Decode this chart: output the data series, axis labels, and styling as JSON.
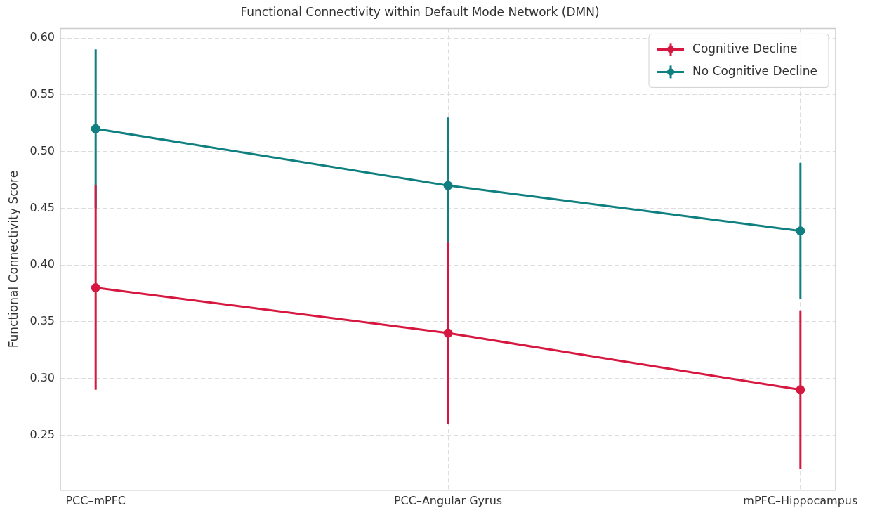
{
  "chart_data": {
    "type": "line",
    "title": "Functional Connectivity within Default Mode Network (DMN)",
    "ylabel": "Functional Connectivity Score",
    "categories": [
      "PCC–mPFC",
      "PCC–Angular Gyrus",
      "mPFC–Hippocampus"
    ],
    "series": [
      {
        "name": "Cognitive Decline",
        "color": "#d6173f",
        "values": [
          0.38,
          0.34,
          0.29
        ],
        "errors": [
          0.09,
          0.08,
          0.07
        ]
      },
      {
        "name": "No Cognitive Decline",
        "color": "#0f7f7f",
        "values": [
          0.52,
          0.47,
          0.43
        ],
        "errors": [
          0.07,
          0.06,
          0.06
        ]
      }
    ],
    "ylim": [
      0.2015,
      0.6085
    ],
    "yticks": [
      {
        "value": 0.25,
        "label": "0.25"
      },
      {
        "value": 0.3,
        "label": "0.30"
      },
      {
        "value": 0.35,
        "label": "0.35"
      },
      {
        "value": 0.4,
        "label": "0.40"
      },
      {
        "value": 0.45,
        "label": "0.45"
      },
      {
        "value": 0.5,
        "label": "0.50"
      },
      {
        "value": 0.55,
        "label": "0.55"
      },
      {
        "value": 0.6,
        "label": "0.60"
      }
    ],
    "grid": true,
    "legend": "top right",
    "marker": "circle",
    "line_style": "solid"
  }
}
